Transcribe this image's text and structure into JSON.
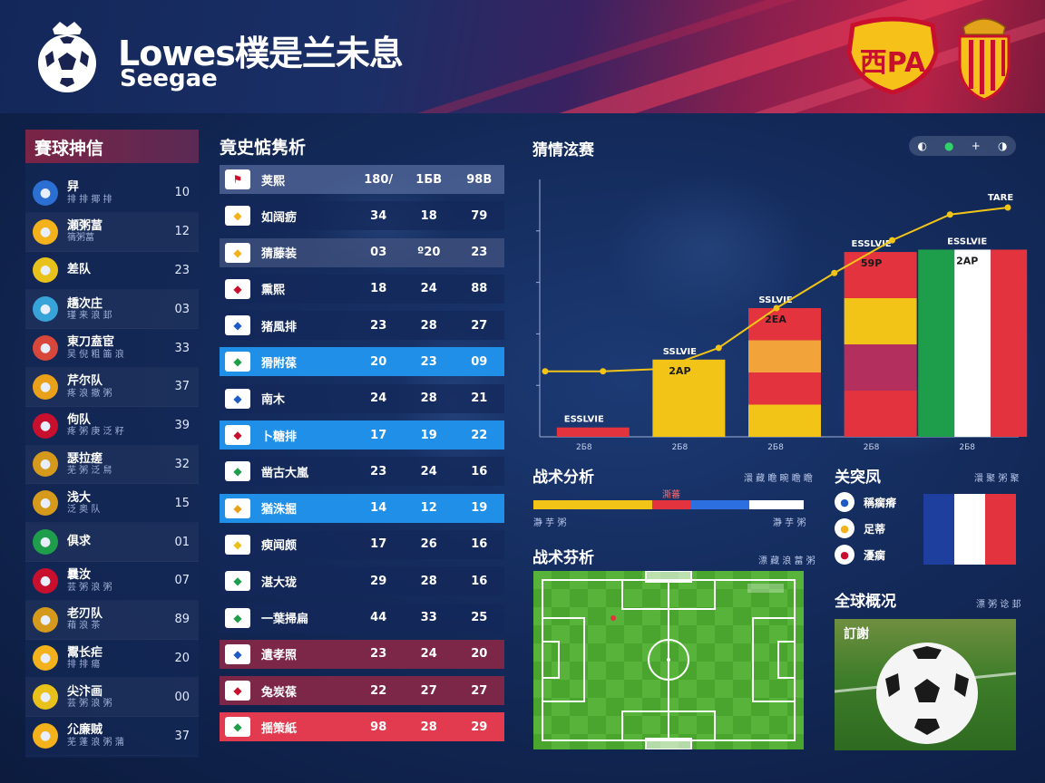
{
  "header": {
    "title": "Lowes樸是兰未息",
    "subtitle": "Seegae",
    "badge_text": "西PA"
  },
  "left_panel": {
    "title": "賽球抻信",
    "teams": [
      {
        "name": "舁",
        "sub": "排 排 揶 排",
        "value": "10",
        "icon": "club-crest-icon",
        "color": "#2a6fd1"
      },
      {
        "name": "瀬粥葍",
        "sub": "篟粥葍",
        "value": "12",
        "icon": "royal-crest-icon",
        "color": "#f3b21b"
      },
      {
        "name": "差队",
        "sub": "",
        "value": "23",
        "icon": "spain-flag-icon",
        "color": "#e8c21a"
      },
      {
        "name": "趫次庄",
        "sub": "瑾 来 浪 邽",
        "value": "03",
        "icon": "club-crest-icon",
        "color": "#37a3d8"
      },
      {
        "name": "東刀盍宦",
        "sub": "吴 倪 粗 筁 浪",
        "value": "33",
        "icon": "club-crest-icon",
        "color": "#d7473b"
      },
      {
        "name": "芹尔队",
        "sub": "疼 浪 撤 粥",
        "value": "37",
        "icon": "club-crest-icon",
        "color": "#e9a11a"
      },
      {
        "name": "佝队",
        "sub": "疼 粥 庚 泛 籽",
        "value": "39",
        "icon": "uk-flag-icon",
        "color": "#c8102e"
      },
      {
        "name": "瑟拉瘥",
        "sub": "芜 粥 泛 舃",
        "value": "32",
        "icon": "trophy-icon",
        "color": "#d59a1b"
      },
      {
        "name": "浅大",
        "sub": "泛 奥 队",
        "value": "15",
        "icon": "trophy-icon",
        "color": "#d59a1b"
      },
      {
        "name": "俱求",
        "sub": "",
        "value": "01",
        "icon": "italy-flag-icon",
        "color": "#1e9e4a"
      },
      {
        "name": "曩汝",
        "sub": "芸 粥 浪 粥",
        "value": "07",
        "icon": "club-crest-icon",
        "color": "#c8102e"
      },
      {
        "name": "老刃队",
        "sub": "葙 浪 茶",
        "value": "89",
        "icon": "trophy-icon",
        "color": "#d59a1b"
      },
      {
        "name": "鬻长疟",
        "sub": "排 排 瘍",
        "value": "20",
        "icon": "royal-crest-icon",
        "color": "#f3b21b"
      },
      {
        "name": "尖汴画",
        "sub": "芸 粥 浪 粥",
        "value": "00",
        "icon": "spain-flag-icon",
        "color": "#e8c21a"
      },
      {
        "name": "尣廉贼",
        "sub": "芜 蓬 浪 粥 蒲",
        "value": "37",
        "icon": "royal-crest-icon",
        "color": "#f3b21b"
      }
    ]
  },
  "stats": {
    "title": "竟史惦隽析",
    "header": {
      "name": "荚熙",
      "c1": "180/",
      "c2": "1БВ",
      "c3": "98В"
    },
    "rows": [
      {
        "name": "如阔疬",
        "c1": "34",
        "c2": "18",
        "c3": "79",
        "style": "dark",
        "flag": "royal-crest-icon",
        "color": "#f3b21b"
      },
      {
        "name": "猜藤装",
        "c1": "03",
        "c2": "º20",
        "c3": "23",
        "style": "slate",
        "flag": "royal-crest-icon",
        "color": "#f3b21b"
      },
      {
        "name": "熏熙",
        "c1": "18",
        "c2": "24",
        "c3": "88",
        "style": "dark",
        "flag": "austria-flag-icon",
        "color": "#c8102e"
      },
      {
        "name": "猪風排",
        "c1": "23",
        "c2": "28",
        "c3": "27",
        "style": "dark",
        "flag": "scotland-flag-icon",
        "color": "#1e5bc6"
      },
      {
        "name": "猾附葆",
        "c1": "20",
        "c2": "23",
        "c3": "09",
        "style": "blue",
        "flag": "club-crest-icon",
        "color": "#1e9e4a"
      },
      {
        "name": "南木",
        "c1": "24",
        "c2": "28",
        "c3": "21",
        "style": "dark",
        "flag": "club-crest-icon",
        "color": "#1e5bc6"
      },
      {
        "name": "卜糖排",
        "c1": "17",
        "c2": "19",
        "c3": "22",
        "style": "blue",
        "flag": "club-crest-icon",
        "color": "#c8102e"
      },
      {
        "name": "凿古大嵐",
        "c1": "23",
        "c2": "24",
        "c3": "16",
        "style": "dark",
        "flag": "cameroon-flag-icon",
        "color": "#1e9e4a"
      },
      {
        "name": "猶洙掘",
        "c1": "14",
        "c2": "12",
        "c3": "19",
        "style": "blue",
        "flag": "club-crest-icon",
        "color": "#e9a11a"
      },
      {
        "name": "瘐闻颇",
        "c1": "17",
        "c2": "26",
        "c3": "16",
        "style": "dark",
        "flag": "spain-flag-icon",
        "color": "#e8c21a"
      },
      {
        "name": "湛大珑",
        "c1": "29",
        "c2": "28",
        "c3": "16",
        "style": "dark",
        "flag": "mexico-flag-icon",
        "color": "#1e9e4a"
      },
      {
        "name": "一葉掃扁",
        "c1": "44",
        "c2": "33",
        "c3": "25",
        "style": "dark",
        "flag": "italy-flag-icon",
        "color": "#1e9e4a"
      },
      {
        "name": "遺孝照",
        "c1": "23",
        "c2": "24",
        "c3": "20",
        "style": "maroon",
        "flag": "club-crest-icon",
        "color": "#1e5bc6"
      },
      {
        "name": "兔炭葆",
        "c1": "22",
        "c2": "27",
        "c3": "27",
        "style": "maroon",
        "flag": "club-crest-icon",
        "color": "#c8102e"
      },
      {
        "name": "揺策紙",
        "c1": "98",
        "c2": "28",
        "c3": "29",
        "style": "red",
        "flag": "club-crest-icon",
        "color": "#1e9e4a"
      }
    ]
  },
  "chart": {
    "title": "猜情泫赛",
    "controls": [
      "◐",
      "●",
      "+",
      "◑"
    ]
  },
  "chart_data": {
    "type": "bar",
    "categories": [
      "2Б8",
      "2Б8",
      "2Б8",
      "2Б8",
      "2Б8"
    ],
    "bar_values": [
      4,
      33,
      55,
      79,
      80
    ],
    "bar_labels": [
      "ESSLVIE",
      "SSLVIE",
      "SSLVIE",
      "ESSLVIE",
      "ESSLVIE"
    ],
    "bar_inner_labels": [
      "",
      "2AP",
      "2EA",
      "59P",
      "2AP"
    ],
    "line_values": [
      28,
      28,
      29,
      38,
      55,
      70,
      84,
      95,
      98
    ],
    "top_label": "TARE",
    "ylim": [
      0,
      110
    ]
  },
  "tactics": {
    "title": "战术分析",
    "right_label": "澴 藏 瞻 畹 瞻 瞻",
    "bar_center_label": "澌蕃",
    "bar_left_label": "瀞 芋 粥",
    "bar_right_label": "瀞 芋 粥",
    "segments": [
      {
        "name": "yellow",
        "value": 44,
        "color": "#f2c417"
      },
      {
        "name": "red",
        "value": 14,
        "color": "#e2333f"
      },
      {
        "name": "blue",
        "value": 22,
        "color": "#2b6fe0"
      },
      {
        "name": "white",
        "value": 20,
        "color": "#ffffff"
      }
    ]
  },
  "pitch_section": {
    "title": "战术芬析",
    "right_label": "漂 藏 浪 葍 粥"
  },
  "lineup": {
    "title": "关突凤",
    "right_label": "澴 聚 粥 聚",
    "items": [
      {
        "name": "稱瘸瘠",
        "icon": "club-crest-icon",
        "color": "#1e5bc6"
      },
      {
        "name": "足蒂",
        "icon": "royal-crest-icon",
        "color": "#f3b21b"
      },
      {
        "name": "瀀瘸",
        "icon": "club-crest-icon",
        "color": "#c8102e"
      }
    ]
  },
  "global": {
    "title": "全球概况",
    "right_label": "漂 粥 谂 邽",
    "photo_label": "訂謝"
  }
}
